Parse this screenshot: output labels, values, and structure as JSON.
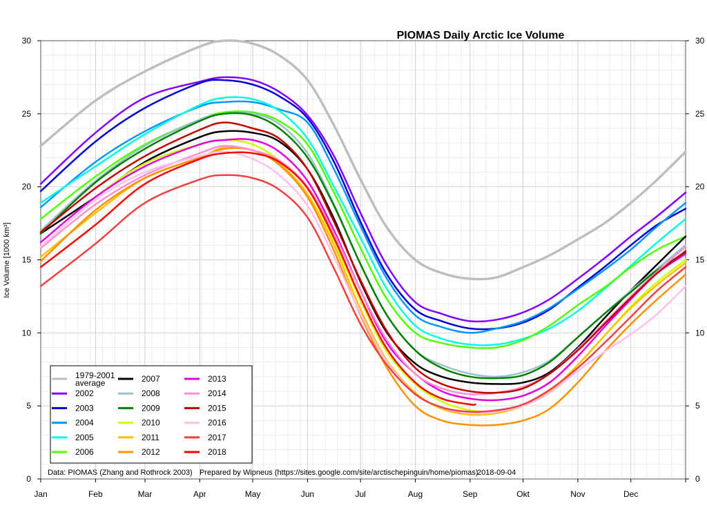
{
  "chart_data": {
    "type": "line",
    "title": "PIOMAS Daily Arctic Ice Volume",
    "ylabel": "Ice Volume [1000 km³]",
    "xlabel": "",
    "ylim": [
      0,
      30
    ],
    "yticks": [
      "0",
      "5",
      "10",
      "15",
      "20",
      "25",
      "30"
    ],
    "xlim": [
      1,
      366
    ],
    "months": [
      {
        "label": "Jan",
        "day": 1
      },
      {
        "label": "Feb",
        "day": 32
      },
      {
        "label": "Mar",
        "day": 60
      },
      {
        "label": "Apr",
        "day": 91
      },
      {
        "label": "May",
        "day": 121
      },
      {
        "label": "Jun",
        "day": 152
      },
      {
        "label": "Jul",
        "day": 182
      },
      {
        "label": "Aug",
        "day": 213
      },
      {
        "label": "Sep",
        "day": 244
      },
      {
        "label": "Okt",
        "day": 274
      },
      {
        "label": "Nov",
        "day": 305
      },
      {
        "label": "Dec",
        "day": 335
      }
    ],
    "grid": true,
    "legend_position": "bottom-left",
    "series": [
      {
        "name": "1979-2001 average",
        "color": "#bebebe",
        "width": 3.5,
        "x": [
          1,
          32,
          60,
          91,
          105,
          121,
          136,
          152,
          167,
          182,
          197,
          213,
          228,
          244,
          259,
          274,
          289,
          305,
          320,
          335,
          350,
          366
        ],
        "y": [
          22.8,
          25.9,
          27.9,
          29.6,
          30.0,
          29.8,
          29.0,
          27.3,
          24.2,
          20.5,
          17.2,
          15.0,
          14.1,
          13.7,
          13.8,
          14.5,
          15.3,
          16.4,
          17.5,
          18.9,
          20.5,
          22.4
        ]
      },
      {
        "name": "2002",
        "color": "#8000ff",
        "width": 2.5,
        "x": [
          1,
          32,
          60,
          91,
          105,
          121,
          136,
          152,
          167,
          182,
          197,
          213,
          228,
          244,
          259,
          274,
          289,
          305,
          320,
          335,
          350,
          366
        ],
        "y": [
          20.2,
          23.7,
          26.1,
          27.2,
          27.5,
          27.3,
          26.5,
          24.9,
          22.1,
          18.2,
          14.6,
          12.1,
          11.3,
          10.8,
          10.9,
          11.4,
          12.3,
          13.7,
          15.1,
          16.6,
          18.0,
          19.6
        ]
      },
      {
        "name": "2003",
        "color": "#0000d0",
        "width": 2.5,
        "x": [
          1,
          32,
          60,
          91,
          105,
          121,
          136,
          152,
          167,
          182,
          197,
          213,
          228,
          244,
          259,
          274,
          289,
          305,
          320,
          335,
          350,
          366
        ],
        "y": [
          19.7,
          23.1,
          25.4,
          27.1,
          27.3,
          27.0,
          26.2,
          24.7,
          21.7,
          17.6,
          14.0,
          11.6,
          10.8,
          10.3,
          10.3,
          10.7,
          11.6,
          13.1,
          14.5,
          16.0,
          17.4,
          18.5
        ]
      },
      {
        "name": "2004",
        "color": "#0096ff",
        "width": 2.5,
        "x": [
          1,
          32,
          60,
          91,
          105,
          121,
          136,
          152,
          167,
          182,
          197,
          213,
          228,
          244,
          259,
          274,
          289,
          305,
          320,
          335,
          350,
          366
        ],
        "y": [
          18.6,
          21.7,
          23.8,
          25.5,
          25.8,
          25.8,
          25.3,
          24.4,
          21.2,
          17.3,
          13.7,
          11.2,
          10.4,
          10.0,
          10.3,
          10.8,
          11.7,
          13.0,
          14.3,
          15.7,
          17.3,
          18.9
        ]
      },
      {
        "name": "2005",
        "color": "#00ffe0",
        "width": 2.5,
        "x": [
          1,
          32,
          60,
          91,
          105,
          121,
          136,
          152,
          167,
          182,
          197,
          213,
          228,
          244,
          259,
          274,
          289,
          305,
          320,
          335,
          350,
          366
        ],
        "y": [
          18.9,
          21.4,
          23.6,
          25.6,
          26.1,
          26.0,
          25.2,
          23.3,
          20.0,
          16.5,
          13.0,
          10.5,
          9.6,
          9.2,
          9.2,
          9.6,
          10.3,
          11.5,
          13.0,
          14.6,
          16.2,
          17.8
        ]
      },
      {
        "name": "2006",
        "color": "#50ff00",
        "width": 2.5,
        "x": [
          1,
          32,
          60,
          91,
          105,
          121,
          136,
          152,
          167,
          182,
          197,
          213,
          228,
          244,
          259,
          274,
          289,
          305,
          320,
          335,
          350,
          366
        ],
        "y": [
          17.8,
          20.7,
          22.9,
          24.6,
          25.1,
          25.1,
          24.5,
          22.9,
          19.6,
          15.8,
          12.3,
          10.0,
          9.3,
          9.0,
          9.0,
          9.5,
          10.5,
          11.9,
          13.1,
          14.5,
          15.7,
          16.6
        ]
      },
      {
        "name": "2007",
        "color": "#000000",
        "width": 2.5,
        "x": [
          1,
          32,
          60,
          91,
          105,
          121,
          136,
          152,
          167,
          182,
          197,
          213,
          228,
          244,
          259,
          274,
          289,
          305,
          320,
          335,
          350,
          366
        ],
        "y": [
          16.8,
          19.3,
          21.7,
          23.4,
          23.8,
          23.7,
          23.1,
          21.2,
          17.8,
          13.5,
          10.0,
          7.9,
          7.0,
          6.6,
          6.5,
          6.6,
          7.3,
          9.0,
          11.0,
          12.9,
          14.7,
          16.6
        ]
      },
      {
        "name": "2008",
        "color": "#9cc0cc",
        "width": 2.5,
        "x": [
          1,
          32,
          60,
          91,
          105,
          121,
          136,
          152,
          167,
          182,
          197,
          213,
          228,
          244,
          259,
          274,
          289,
          305,
          320,
          335,
          350,
          366
        ],
        "y": [
          17.0,
          20.4,
          22.8,
          24.6,
          25.0,
          25.0,
          24.3,
          22.3,
          18.8,
          14.7,
          11.2,
          8.8,
          7.8,
          7.2,
          7.0,
          7.3,
          8.1,
          9.7,
          11.3,
          12.9,
          14.4,
          16.0
        ]
      },
      {
        "name": "2009",
        "color": "#008000",
        "width": 2.5,
        "x": [
          1,
          32,
          60,
          91,
          105,
          121,
          136,
          152,
          167,
          182,
          197,
          213,
          228,
          244,
          259,
          274,
          289,
          305,
          320,
          335,
          350,
          366
        ],
        "y": [
          16.8,
          20.3,
          22.6,
          24.5,
          25.0,
          24.9,
          24.0,
          22.0,
          18.7,
          14.7,
          11.2,
          8.8,
          7.6,
          7.0,
          6.9,
          7.1,
          8.0,
          9.7,
          11.3,
          12.8,
          14.3,
          15.5
        ]
      },
      {
        "name": "2010",
        "color": "#d0ff00",
        "width": 2.5,
        "x": [
          1,
          32,
          60,
          91,
          105,
          121,
          136,
          152,
          167,
          182,
          197,
          213,
          228,
          244,
          259,
          274,
          289,
          305,
          320,
          335,
          350,
          366
        ],
        "y": [
          16.2,
          19.3,
          21.6,
          22.9,
          23.2,
          22.9,
          21.8,
          19.9,
          16.3,
          12.2,
          8.7,
          6.5,
          5.3,
          4.7,
          4.6,
          5.0,
          6.0,
          7.8,
          9.8,
          11.8,
          13.5,
          15.0
        ]
      },
      {
        "name": "2011",
        "color": "#ffc000",
        "width": 2.5,
        "x": [
          1,
          32,
          60,
          91,
          105,
          121,
          136,
          152,
          167,
          182,
          197,
          213,
          228,
          244,
          259,
          274,
          289,
          305,
          320,
          335,
          350,
          366
        ],
        "y": [
          15.2,
          18.2,
          20.6,
          22.0,
          22.7,
          22.5,
          21.6,
          19.5,
          16.0,
          11.6,
          8.1,
          5.9,
          4.8,
          4.4,
          4.5,
          5.0,
          6.0,
          7.8,
          9.8,
          11.7,
          13.3,
          14.8
        ]
      },
      {
        "name": "2012",
        "color": "#ff9000",
        "width": 2.5,
        "x": [
          1,
          32,
          60,
          91,
          105,
          121,
          136,
          152,
          167,
          182,
          197,
          213,
          228,
          244,
          259,
          274,
          289,
          305,
          320,
          335,
          350,
          366
        ],
        "y": [
          14.9,
          18.4,
          20.6,
          22.0,
          22.6,
          22.5,
          21.5,
          19.3,
          15.6,
          11.2,
          7.6,
          5.0,
          4.0,
          3.7,
          3.7,
          4.0,
          4.8,
          6.6,
          8.7,
          10.6,
          12.3,
          14.0
        ]
      },
      {
        "name": "2013",
        "color": "#e000e0",
        "width": 2.5,
        "x": [
          1,
          32,
          60,
          91,
          105,
          121,
          136,
          152,
          167,
          182,
          197,
          213,
          228,
          244,
          259,
          274,
          289,
          305,
          320,
          335,
          350,
          366
        ],
        "y": [
          16.2,
          19.3,
          21.4,
          22.9,
          23.2,
          23.2,
          22.4,
          20.4,
          17.0,
          12.9,
          9.3,
          7.2,
          6.0,
          5.5,
          5.4,
          5.7,
          6.6,
          8.4,
          10.4,
          12.3,
          14.1,
          15.4
        ]
      },
      {
        "name": "2014",
        "color": "#ff90d0",
        "width": 2.5,
        "x": [
          1,
          32,
          60,
          91,
          105,
          121,
          136,
          152,
          167,
          182,
          197,
          213,
          228,
          244,
          259,
          274,
          289,
          305,
          320,
          335,
          350,
          366
        ],
        "y": [
          15.8,
          18.8,
          20.8,
          22.3,
          22.8,
          22.5,
          21.8,
          20.0,
          16.8,
          12.9,
          9.5,
          7.2,
          6.2,
          5.8,
          5.9,
          6.3,
          7.2,
          8.9,
          10.7,
          12.5,
          14.2,
          15.9
        ]
      },
      {
        "name": "2015",
        "color": "#c00000",
        "width": 2.5,
        "x": [
          1,
          32,
          60,
          91,
          105,
          121,
          136,
          152,
          167,
          182,
          197,
          213,
          228,
          244,
          259,
          274,
          289,
          305,
          320,
          335,
          350,
          366
        ],
        "y": [
          16.9,
          19.9,
          22.1,
          23.9,
          24.4,
          24.0,
          23.3,
          21.2,
          17.6,
          13.6,
          10.1,
          7.6,
          6.5,
          6.0,
          5.9,
          6.2,
          7.2,
          8.8,
          10.6,
          12.4,
          14.1,
          15.6
        ]
      },
      {
        "name": "2016",
        "color": "#ffc0f0",
        "width": 2.5,
        "x": [
          1,
          32,
          60,
          91,
          105,
          121,
          136,
          152,
          167,
          182,
          197,
          213,
          228,
          244,
          259,
          274,
          289,
          305,
          320,
          335,
          350,
          366
        ],
        "y": [
          15.9,
          19.1,
          21.0,
          22.1,
          22.4,
          21.9,
          20.8,
          18.7,
          15.2,
          11.3,
          8.0,
          5.8,
          4.9,
          4.5,
          4.6,
          5.0,
          5.9,
          7.4,
          8.7,
          9.9,
          11.3,
          13.2
        ]
      },
      {
        "name": "2017",
        "color": "#f04040",
        "width": 2.5,
        "x": [
          1,
          32,
          60,
          91,
          105,
          121,
          136,
          152,
          167,
          182,
          197,
          213,
          228,
          244,
          259,
          274,
          289,
          305,
          320,
          335,
          350,
          366
        ],
        "y": [
          13.2,
          16.1,
          18.9,
          20.5,
          20.8,
          20.6,
          19.8,
          17.9,
          14.4,
          10.6,
          7.8,
          5.8,
          4.9,
          4.6,
          4.7,
          5.1,
          6.1,
          7.6,
          9.3,
          11.1,
          12.9,
          14.5
        ]
      },
      {
        "name": "2018",
        "color": "#ff0000",
        "width": 2.5,
        "x": [
          1,
          32,
          60,
          91,
          105,
          121,
          136,
          152,
          167,
          182,
          197,
          213,
          228,
          244,
          247
        ],
        "y": [
          14.5,
          17.4,
          20.2,
          21.9,
          22.3,
          22.3,
          21.7,
          19.9,
          16.5,
          12.4,
          8.9,
          6.6,
          5.5,
          5.1,
          5.1
        ]
      }
    ]
  },
  "legend": {
    "columns": [
      [
        "1979-2001 average",
        "2002",
        "2003",
        "2004",
        "2005",
        "2006"
      ],
      [
        "2007",
        "2008",
        "2009",
        "2010",
        "2011",
        "2012"
      ],
      [
        "2013",
        "2014",
        "2015",
        "2016",
        "2017",
        "2018"
      ]
    ],
    "average_line1": "1979-2001",
    "average_line2": "average"
  },
  "footer": {
    "data_source": "Data: PIOMAS (Zhang and Rothrock 2003)",
    "prepared_by": "Prepared by Wipneus (https://sites.google.com/site/arctischepinguin/home/piomas)",
    "date": "2018-09-04"
  }
}
